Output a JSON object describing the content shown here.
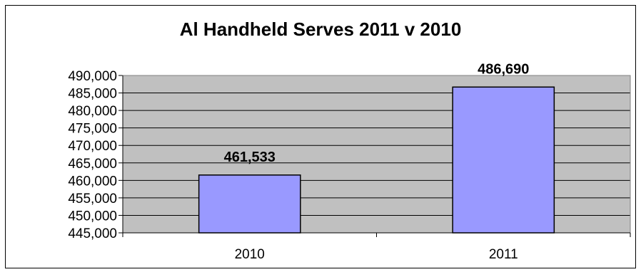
{
  "chart_data": {
    "type": "bar",
    "title": "Al Handheld Serves 2011 v 2010",
    "categories": [
      "2010",
      "2011"
    ],
    "values": [
      461533,
      486690
    ],
    "data_labels": [
      "461,533",
      "486,690"
    ],
    "ylim": [
      445000,
      490000
    ],
    "yticks": [
      445000,
      450000,
      455000,
      460000,
      465000,
      470000,
      475000,
      480000,
      485000,
      490000
    ],
    "ytick_labels": [
      "445,000",
      "450,000",
      "455,000",
      "460,000",
      "465,000",
      "470,000",
      "475,000",
      "480,000",
      "485,000",
      "490,000"
    ],
    "grid": true,
    "legend": "none",
    "colors": {
      "bar": "#9999ff",
      "plot_background": "#c0c0c0",
      "gridline": "#000000"
    }
  }
}
